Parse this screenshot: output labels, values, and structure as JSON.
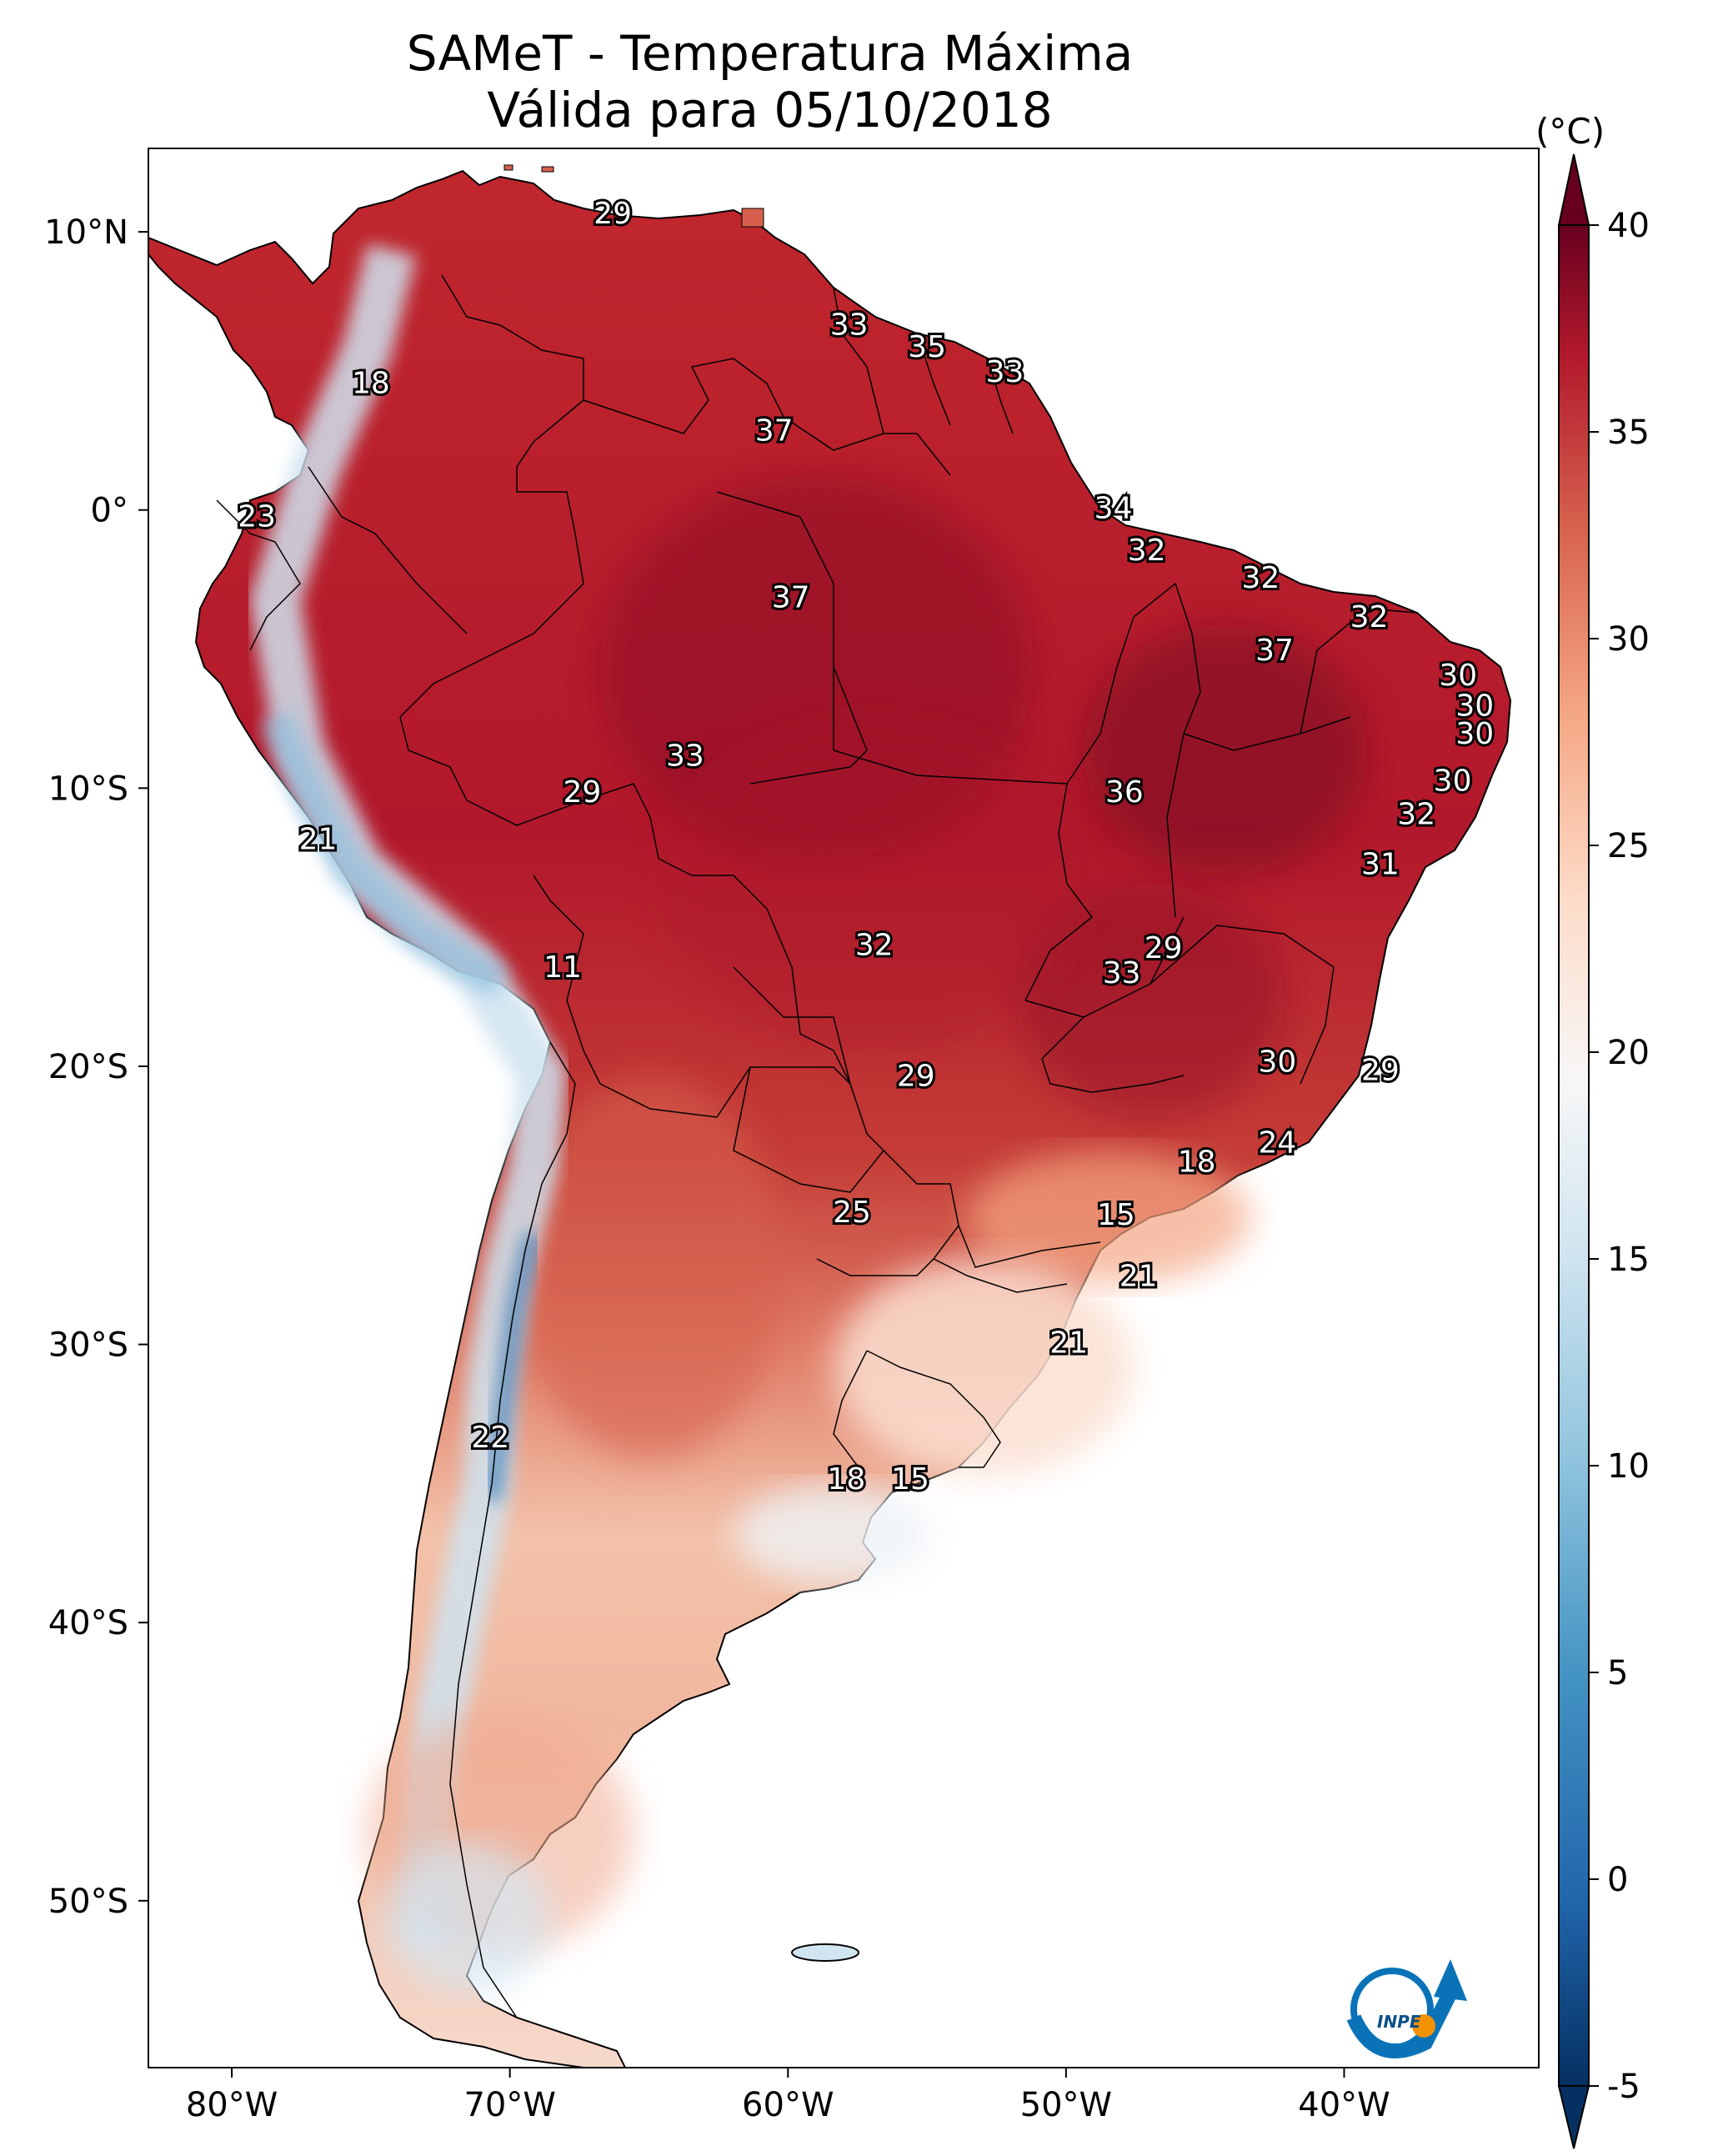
{
  "figure": {
    "title_line1": "SAMeT - Temperatura Máxima",
    "title_line2": "Válida para 05/10/2018"
  },
  "map": {
    "lon_range": [
      -83,
      -33
    ],
    "lat_range": [
      -56,
      13
    ],
    "lon_ticks": [
      {
        "value": -80,
        "label": "80°W"
      },
      {
        "value": -70,
        "label": "70°W"
      },
      {
        "value": -60,
        "label": "60°W"
      },
      {
        "value": -50,
        "label": "50°W"
      },
      {
        "value": -40,
        "label": "40°W"
      }
    ],
    "lat_ticks": [
      {
        "value": 10,
        "label": "10°N"
      },
      {
        "value": 0,
        "label": "0°"
      },
      {
        "value": -10,
        "label": "10°S"
      },
      {
        "value": -20,
        "label": "20°S"
      },
      {
        "value": -30,
        "label": "30°S"
      },
      {
        "value": -40,
        "label": "40°S"
      },
      {
        "value": -50,
        "label": "50°S"
      }
    ],
    "point_values": [
      {
        "lon": -66.3,
        "lat": 10.6,
        "value": "29"
      },
      {
        "lon": -75.0,
        "lat": 4.5,
        "value": "18"
      },
      {
        "lon": -57.8,
        "lat": 6.6,
        "value": "33"
      },
      {
        "lon": -55.0,
        "lat": 5.8,
        "value": "35"
      },
      {
        "lon": -52.2,
        "lat": 4.9,
        "value": "33"
      },
      {
        "lon": -60.5,
        "lat": 2.8,
        "value": "37"
      },
      {
        "lon": -48.3,
        "lat": 0.0,
        "value": "34"
      },
      {
        "lon": -79.1,
        "lat": -0.3,
        "value": "23"
      },
      {
        "lon": -47.1,
        "lat": -1.5,
        "value": "32"
      },
      {
        "lon": -43.0,
        "lat": -2.5,
        "value": "32"
      },
      {
        "lon": -59.9,
        "lat": -3.2,
        "value": "37"
      },
      {
        "lon": -39.1,
        "lat": -3.9,
        "value": "32"
      },
      {
        "lon": -42.5,
        "lat": -5.1,
        "value": "37"
      },
      {
        "lon": -35.9,
        "lat": -6.0,
        "value": "30"
      },
      {
        "lon": -35.3,
        "lat": -7.1,
        "value": "30"
      },
      {
        "lon": -35.3,
        "lat": -8.1,
        "value": "30"
      },
      {
        "lon": -63.7,
        "lat": -8.9,
        "value": "33"
      },
      {
        "lon": -36.1,
        "lat": -9.8,
        "value": "30"
      },
      {
        "lon": -67.4,
        "lat": -10.2,
        "value": "29"
      },
      {
        "lon": -47.9,
        "lat": -10.2,
        "value": "36"
      },
      {
        "lon": -37.4,
        "lat": -11.0,
        "value": "32"
      },
      {
        "lon": -76.9,
        "lat": -11.9,
        "value": "21"
      },
      {
        "lon": -38.7,
        "lat": -12.8,
        "value": "31"
      },
      {
        "lon": -56.9,
        "lat": -15.7,
        "value": "32"
      },
      {
        "lon": -46.5,
        "lat": -15.8,
        "value": "29"
      },
      {
        "lon": -48.0,
        "lat": -16.7,
        "value": "33"
      },
      {
        "lon": -68.1,
        "lat": -16.5,
        "value": "11"
      },
      {
        "lon": -42.4,
        "lat": -19.9,
        "value": "30"
      },
      {
        "lon": -38.7,
        "lat": -20.2,
        "value": "29"
      },
      {
        "lon": -55.4,
        "lat": -20.4,
        "value": "29"
      },
      {
        "lon": -42.4,
        "lat": -22.8,
        "value": "24"
      },
      {
        "lon": -45.3,
        "lat": -23.5,
        "value": "18"
      },
      {
        "lon": -57.7,
        "lat": -25.3,
        "value": "25"
      },
      {
        "lon": -48.2,
        "lat": -25.4,
        "value": "15"
      },
      {
        "lon": -47.4,
        "lat": -27.6,
        "value": "21"
      },
      {
        "lon": -49.9,
        "lat": -30.0,
        "value": "21"
      },
      {
        "lon": -70.7,
        "lat": -33.4,
        "value": "22"
      },
      {
        "lon": -57.9,
        "lat": -34.9,
        "value": "18"
      },
      {
        "lon": -55.6,
        "lat": -34.9,
        "value": "15"
      }
    ]
  },
  "colorbar": {
    "unit": "(°C)",
    "range": [
      -5,
      40
    ],
    "ticks": [
      {
        "value": 40,
        "label": "40"
      },
      {
        "value": 35,
        "label": "35"
      },
      {
        "value": 30,
        "label": "30"
      },
      {
        "value": 25,
        "label": "25"
      },
      {
        "value": 20,
        "label": "20"
      },
      {
        "value": 15,
        "label": "15"
      },
      {
        "value": 10,
        "label": "10"
      },
      {
        "value": 5,
        "label": "5"
      },
      {
        "value": 0,
        "label": "0"
      },
      {
        "value": -5,
        "label": "-5"
      }
    ],
    "colors": {
      "max": "#67001f",
      "hot": "#b2182b",
      "warm": "#d6604d",
      "mild": "#f4a582",
      "light_warm": "#fddbc7",
      "neutral": "#f7f7f7",
      "light_cool": "#d1e5f0",
      "cool": "#92c5de",
      "cold": "#4393c3",
      "colder": "#2166ac",
      "min": "#053061"
    }
  },
  "logo": {
    "text": "INPE",
    "ring_color": "#0a73b8",
    "dot_color": "#f39200"
  }
}
